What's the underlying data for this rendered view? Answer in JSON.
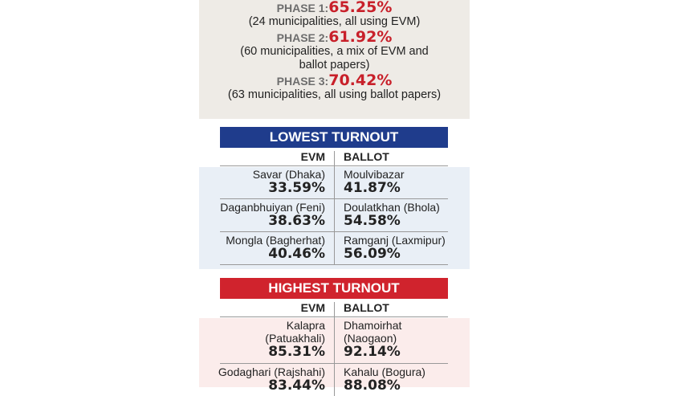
{
  "phases": [
    {
      "label": "PHASE 1:",
      "value": "65.25%",
      "desc": [
        "(24 municipalities, all using EVM)"
      ]
    },
    {
      "label": "PHASE 2:",
      "value": "61.92%",
      "desc": [
        "(60 municipalities, a mix of EVM and",
        "ballot papers)"
      ]
    },
    {
      "label": "PHASE 3:",
      "value": "70.42%",
      "desc": [
        "(63 municipalities, all using ballot papers)"
      ]
    }
  ],
  "lowest": {
    "title": "LOWEST TURNOUT",
    "evm_label": "EVM",
    "ballot_label": "BALLOT",
    "color": "#1f3c8c",
    "bg": "#e9eff6",
    "rows": [
      {
        "evm": {
          "name": "Savar (Dhaka)",
          "pct": "33.59%"
        },
        "ballot": {
          "name": "Moulvibazar",
          "pct": "41.87%"
        }
      },
      {
        "evm": {
          "name": "Daganbhuiyan (Feni)",
          "pct": "38.63%"
        },
        "ballot": {
          "name": "Doulatkhan (Bhola)",
          "pct": "54.58%"
        }
      },
      {
        "evm": {
          "name": "Mongla (Bagherhat)",
          "pct": "40.46%"
        },
        "ballot": {
          "name": "Ramganj (Laxmipur)",
          "pct": "56.09%"
        }
      }
    ]
  },
  "highest": {
    "title": "HIGHEST TURNOUT",
    "evm_label": "EVM",
    "ballot_label": "BALLOT",
    "color": "#d0232d",
    "bg": "#fbeceb",
    "rows": [
      {
        "evm": {
          "name": "Kalapra (Patuakhali)",
          "pct": "85.31%"
        },
        "ballot": {
          "name": "Dhamoirhat (Naogaon)",
          "pct": "92.14%"
        }
      },
      {
        "evm": {
          "name": "Godaghari (Rajshahi)",
          "pct": "83.44%"
        },
        "ballot": {
          "name": "Kahalu (Bogura)",
          "pct": "88.08%"
        }
      }
    ]
  }
}
